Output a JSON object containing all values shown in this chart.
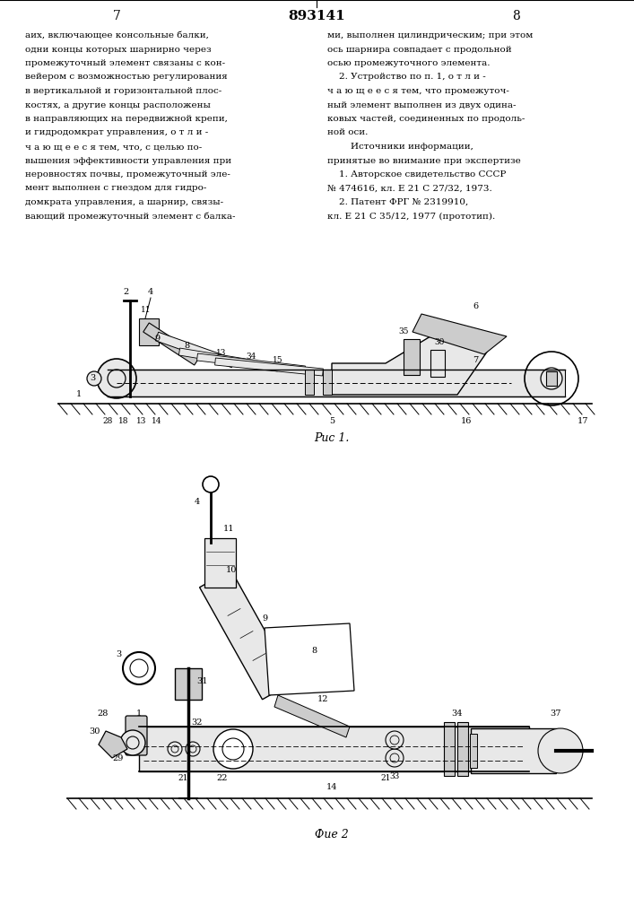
{
  "page_number_left": "7",
  "page_number_right": "8",
  "patent_number": "893141",
  "left_text_lines": [
    "аих, включающее консольные балки,",
    "одни концы которых шарнирно через",
    "промежуточный элемент связаны с кон-",
    "вейером с возможностью регулирования",
    "в вертикальной и горизонтальной плос-",
    "костях, а другие концы расположены",
    "в направляющих на передвижной крепи,",
    "и гидродомкрат управления, о т л и -",
    "ч а ю щ е е с я тем, что, с целью по-",
    "вышения эффективности управления при",
    "неровностях почвы, промежуточный эле-",
    "мент выполнен с гнездом для гидро-",
    "домкрата управления, а шарнир, связы-",
    "вающий промежуточный элемент с балка-"
  ],
  "right_text_lines": [
    "ми, выполнен цилиндрическим; при этом",
    "ось шарнира совпадает с продольной",
    "осью промежуточного элемента.",
    "    2. Устройство по п. 1, о т л и -",
    "ч а ю щ е е с я тем, что промежуточ-",
    "ный элемент выполнен из двух одина-",
    "ковых частей, соединенных по продоль-",
    "ной оси.",
    "        Источники информации,",
    "принятые во внимание при экспертизе",
    "    1. Авторское свидетельство СССР",
    "№ 474616, кл. E 21 C 27/32, 1973.",
    "    2. Патент ФРГ № 2319910,",
    "кл. E 21 С 35/12, 1977 (прототип)."
  ],
  "fig1_caption": "Рис 1.",
  "fig2_caption": "Фие 2",
  "bg": "#ffffff",
  "black": "#000000",
  "gray_light": "#e8e8e8",
  "gray_mid": "#cccccc",
  "gray_dark": "#aaaaaa"
}
